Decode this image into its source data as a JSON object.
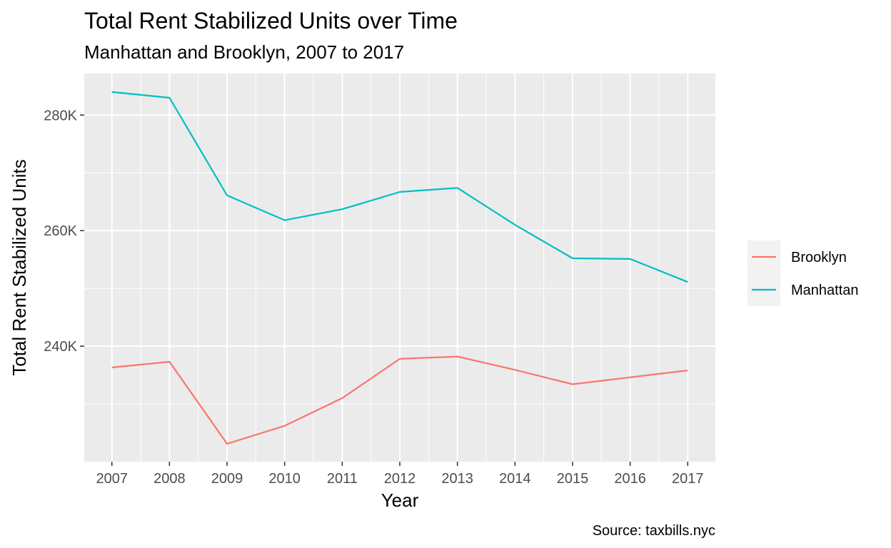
{
  "chart_data": {
    "type": "line",
    "title": "Total Rent Stabilized Units over Time",
    "subtitle": "Manhattan and Brooklyn, 2007 to 2017",
    "caption": "Source: taxbills.nyc",
    "xlabel": "Year",
    "ylabel": "Total Rent Stabilized Units",
    "x": [
      2007,
      2008,
      2009,
      2010,
      2011,
      2012,
      2013,
      2014,
      2015,
      2016,
      2017
    ],
    "x_tick_labels": [
      "2007",
      "2008",
      "2009",
      "2010",
      "2011",
      "2012",
      "2013",
      "2014",
      "2015",
      "2016",
      "2017"
    ],
    "xlim": [
      2006.52,
      2017.48
    ],
    "y_ticks": [
      240000,
      260000,
      280000
    ],
    "y_tick_labels": [
      "240K",
      "260K",
      "280K"
    ],
    "ylim": [
      220000,
      287200
    ],
    "grid": true,
    "legend_position": "right",
    "series": [
      {
        "name": "Brooklyn",
        "color": "#F8766D",
        "values": [
          236300,
          237300,
          223100,
          226200,
          231000,
          237800,
          238200,
          235900,
          233400,
          234600,
          235800
        ]
      },
      {
        "name": "Manhattan",
        "color": "#00BFC4",
        "values": [
          284000,
          283000,
          266100,
          261800,
          263700,
          266700,
          267400,
          261000,
          255200,
          255100,
          251100
        ]
      }
    ]
  }
}
